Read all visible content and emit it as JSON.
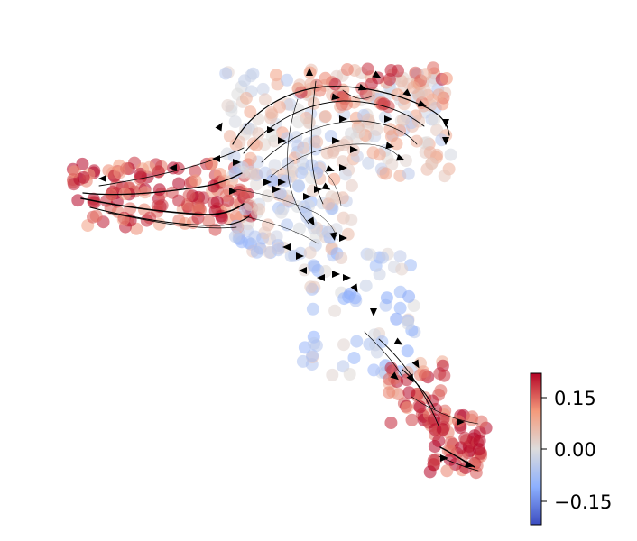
{
  "chart_data": {
    "type": "scatter",
    "subtype": "embedding-with-velocity-streamlines",
    "title": "",
    "xlabel": "",
    "ylabel": "",
    "axes_visible": false,
    "grid": false,
    "colormap": "coolwarm",
    "colorbar": {
      "placement": "right",
      "range": [
        -0.21,
        0.21
      ],
      "ticks": [
        0.15,
        0.0,
        -0.15
      ],
      "tick_labels": [
        "0.15",
        "0.00",
        "−0.15"
      ]
    },
    "point_groups": [
      {
        "region": "left-arm",
        "x_range": [
          80,
          280
        ],
        "y_range": [
          180,
          255
        ],
        "count": 150,
        "value_mean": 0.16
      },
      {
        "region": "upper-body",
        "x_range": [
          250,
          500
        ],
        "y_range": [
          80,
          200
        ],
        "count": 200,
        "value_mean": 0.02
      },
      {
        "region": "top-ridge",
        "x_range": [
          330,
          500
        ],
        "y_range": [
          75,
          120
        ],
        "count": 60,
        "value_mean": 0.12
      },
      {
        "region": "center-junction",
        "x_range": [
          260,
          390
        ],
        "y_range": [
          190,
          285
        ],
        "count": 100,
        "value_mean": -0.02
      },
      {
        "region": "stem",
        "x_range": [
          330,
          460
        ],
        "y_range": [
          280,
          420
        ],
        "count": 70,
        "value_mean": -0.04
      },
      {
        "region": "lower-stem",
        "x_range": [
          430,
          500
        ],
        "y_range": [
          400,
          470
        ],
        "count": 45,
        "value_mean": 0.15
      },
      {
        "region": "bottom-blob",
        "x_range": [
          475,
          540
        ],
        "y_range": [
          460,
          525
        ],
        "count": 60,
        "value_mean": 0.19
      }
    ]
  }
}
